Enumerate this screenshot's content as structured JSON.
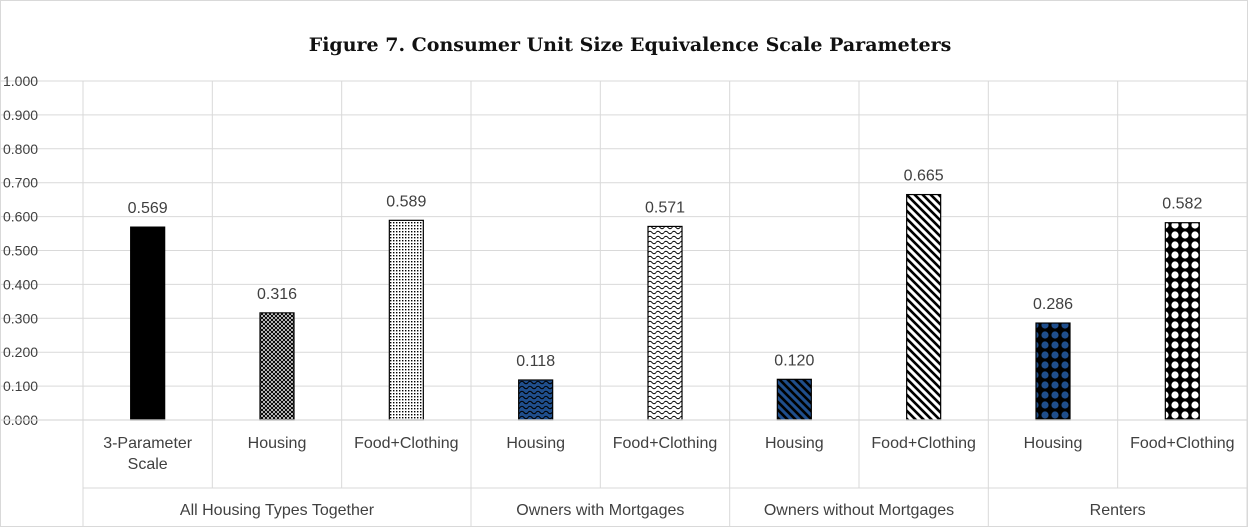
{
  "chart_data": {
    "type": "bar",
    "title": "Figure 7. Consumer Unit Size Equivalence Scale Parameters",
    "ylim": [
      0,
      1
    ],
    "yticks": [
      "0.000",
      "0.100",
      "0.200",
      "0.300",
      "0.400",
      "0.500",
      "0.600",
      "0.700",
      "0.800",
      "0.900",
      "1.000"
    ],
    "grid": true,
    "groups": [
      {
        "name": "All Housing Types Together",
        "categories": [
          "3-Parameter Scale",
          "Housing",
          "Food+Clothing"
        ]
      },
      {
        "name": "Owners with Mortgages",
        "categories": [
          "Housing",
          "Food+Clothing"
        ]
      },
      {
        "name": "Owners without Mortgages",
        "categories": [
          "Housing",
          "Food+Clothing"
        ]
      },
      {
        "name": "Renters",
        "categories": [
          "Housing",
          "Food+Clothing"
        ]
      }
    ],
    "bars": [
      {
        "category": "3-Parameter Scale",
        "label_lines": [
          "3-Parameter",
          "Scale"
        ],
        "value": 0.569,
        "label": "0.569",
        "pattern": "solid-black"
      },
      {
        "category": "Housing",
        "label_lines": [
          "Housing"
        ],
        "value": 0.316,
        "label": "0.316",
        "pattern": "crosshatch"
      },
      {
        "category": "Food+Clothing",
        "label_lines": [
          "Food+Clothing"
        ],
        "value": 0.589,
        "label": "0.589",
        "pattern": "dots"
      },
      {
        "category": "Housing",
        "label_lines": [
          "Housing"
        ],
        "value": 0.118,
        "label": "0.118",
        "pattern": "blue-waves"
      },
      {
        "category": "Food+Clothing",
        "label_lines": [
          "Food+Clothing"
        ],
        "value": 0.571,
        "label": "0.571",
        "pattern": "waves"
      },
      {
        "category": "Housing",
        "label_lines": [
          "Housing"
        ],
        "value": 0.12,
        "label": "0.120",
        "pattern": "blue-diagonal"
      },
      {
        "category": "Food+Clothing",
        "label_lines": [
          "Food+Clothing"
        ],
        "value": 0.665,
        "label": "0.665",
        "pattern": "diagonal"
      },
      {
        "category": "Housing",
        "label_lines": [
          "Housing"
        ],
        "value": 0.286,
        "label": "0.286",
        "pattern": "blue-diamonds"
      },
      {
        "category": "Food+Clothing",
        "label_lines": [
          "Food+Clothing"
        ],
        "value": 0.582,
        "label": "0.582",
        "pattern": "diamonds"
      }
    ],
    "colors": {
      "blue": "#1f4e8c",
      "black": "#000000",
      "grid": "#d9d9d9",
      "text": "#404040"
    }
  }
}
